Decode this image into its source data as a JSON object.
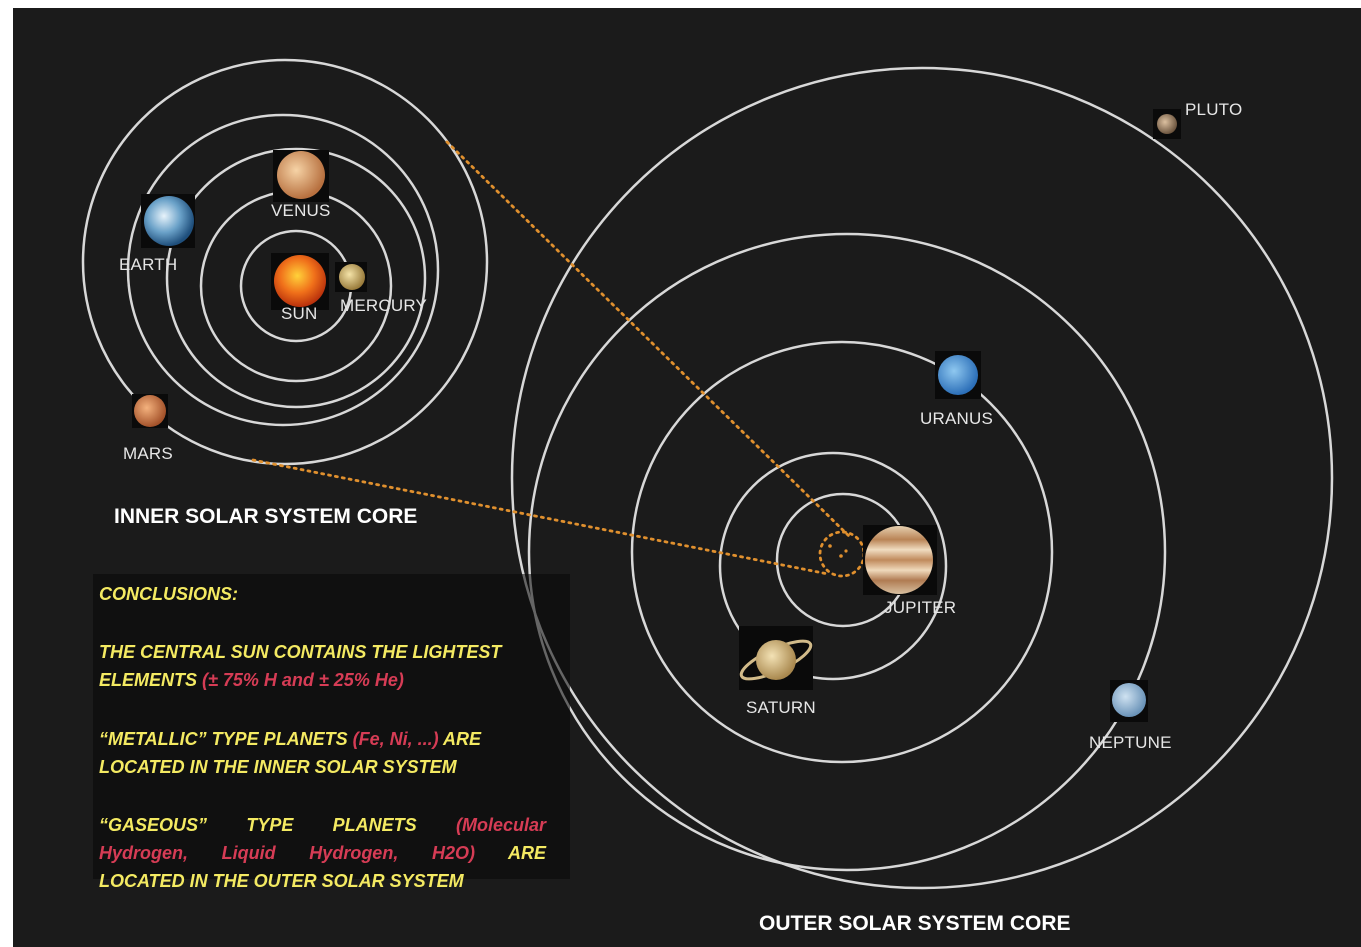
{
  "labels": {
    "inner": {
      "sun": "SUN",
      "mercury": "MERCURY",
      "venus": "VENUS",
      "earth": "EARTH",
      "mars": "MARS",
      "core_title": "INNER SOLAR SYSTEM CORE"
    },
    "outer": {
      "jupiter": "JUPITER",
      "saturn": "SATURN",
      "uranus": "URANUS",
      "neptune": "NEPTUNE",
      "pluto": "PLUTO",
      "core_title": "OUTER SOLAR SYSTEM CORE"
    }
  },
  "conclusions": {
    "heading": "CONCLUSIONS:",
    "p1": "THE CENTRAL SUN CONTAINS THE LIGHTEST",
    "p1b_a": "ELEMENTS ",
    "p1b_red": "(± 75% H and ± 25% He)",
    "p2_a": "“METALLIC” TYPE PLANETS ",
    "p2_red": "(Fe, Ni, ...)",
    "p2_b": " ARE",
    "p2c": "LOCATED IN THE INNER SOLAR SYSTEM",
    "p3_a": "“GASEOUS” TYPE PLANETS ",
    "p3_red1": "(Molecular",
    "p3_red2": "Hydrogen, Liquid Hydrogen, H2O)",
    "p3_b": " ARE",
    "p3c": "LOCATED IN THE OUTER SOLAR SYSTEM"
  },
  "colors": {
    "background": "#1b1b1b",
    "orbit": "#d8d8d8",
    "connector": "#e0902e",
    "conclusion_text": "#f4ea62",
    "conclusion_highlight": "#d63c55"
  },
  "icons": {
    "sun": "sun-icon",
    "mercury": "mercury-icon",
    "venus": "venus-icon",
    "earth": "earth-icon",
    "mars": "mars-icon",
    "jupiter": "jupiter-icon",
    "saturn": "saturn-icon",
    "uranus": "uranus-icon",
    "neptune": "neptune-icon",
    "pluto": "pluto-icon"
  }
}
